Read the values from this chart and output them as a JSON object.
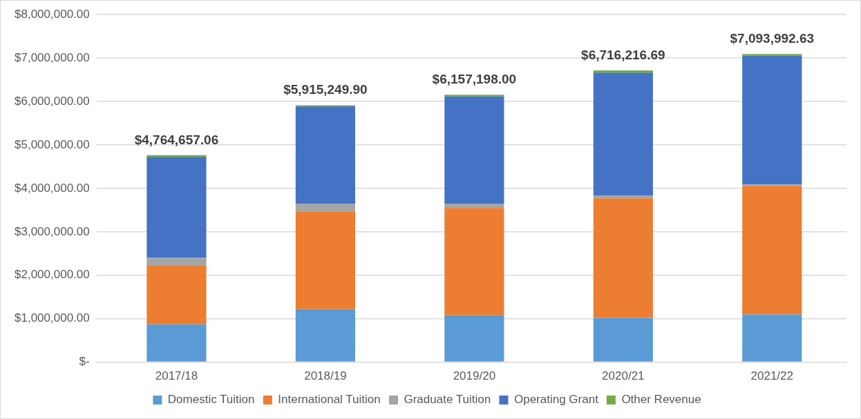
{
  "chart_data": {
    "type": "bar",
    "stacked": true,
    "categories": [
      "2017/18",
      "2018/19",
      "2019/20",
      "2020/21",
      "2021/22"
    ],
    "series": [
      {
        "name": "Domestic Tuition",
        "color": "#5b9bd5",
        "values": [
          870000,
          1220000,
          1080000,
          1020000,
          1100000
        ]
      },
      {
        "name": "International Tuition",
        "color": "#ed7d31",
        "values": [
          1360000,
          2250000,
          2470000,
          2750000,
          2960000
        ]
      },
      {
        "name": "Graduate Tuition",
        "color": "#a5a5a5",
        "values": [
          170000,
          170000,
          100000,
          70000,
          30000
        ]
      },
      {
        "name": "Operating Grant",
        "color": "#4472c4",
        "values": [
          2324657.06,
          2245249.9,
          2467198,
          2826216.69,
          2963992.63
        ]
      },
      {
        "name": "Other Revenue",
        "color": "#70ad47",
        "values": [
          40000,
          30000,
          40000,
          50000,
          40000
        ]
      }
    ],
    "totals": [
      "$4,764,657.06",
      "$5,915,249.90",
      "$6,157,198.00",
      "$6,716,216.69",
      "$7,093,992.63"
    ],
    "ylim": [
      0,
      8000000
    ],
    "yticks": [
      {
        "value": 0,
        "label": "$-"
      },
      {
        "value": 1000000,
        "label": "$1,000,000.00"
      },
      {
        "value": 2000000,
        "label": "$2,000,000.00"
      },
      {
        "value": 3000000,
        "label": "$3,000,000.00"
      },
      {
        "value": 4000000,
        "label": "$4,000,000.00"
      },
      {
        "value": 5000000,
        "label": "$5,000,000.00"
      },
      {
        "value": 6000000,
        "label": "$6,000,000.00"
      },
      {
        "value": 7000000,
        "label": "$7,000,000.00"
      },
      {
        "value": 8000000,
        "label": "$8,000,000.00"
      }
    ],
    "grid": "y",
    "legend": "bottom"
  }
}
